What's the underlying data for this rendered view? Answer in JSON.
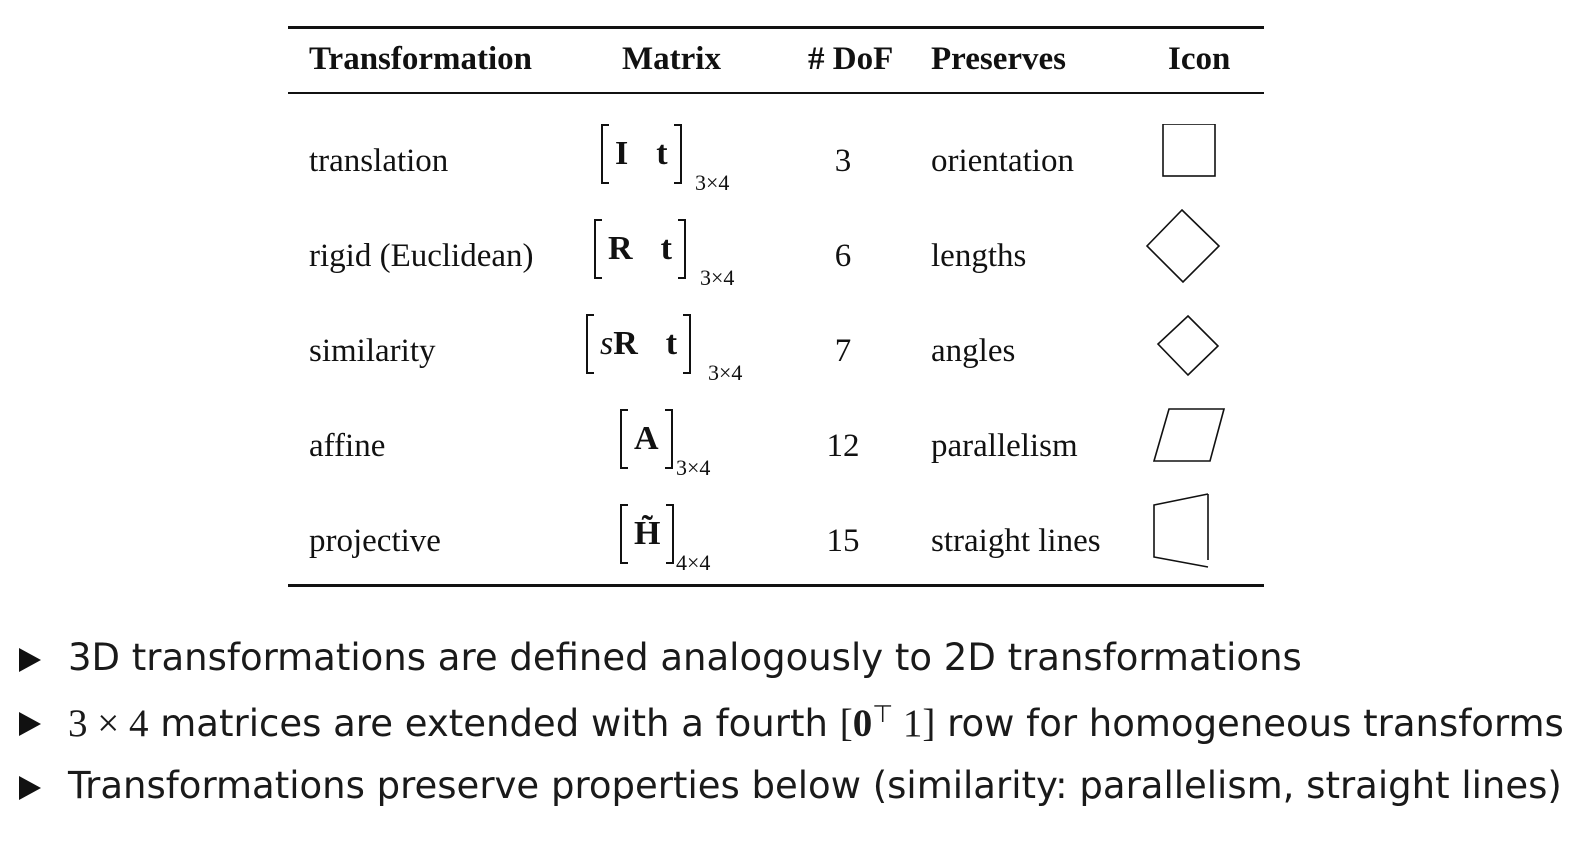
{
  "table": {
    "headers": {
      "transformation": "Transformation",
      "matrix": "Matrix",
      "dof": "# DoF",
      "preserves": "Preserves",
      "icon": "Icon"
    },
    "rows": [
      {
        "transformation": "translation",
        "matrix_a": "I",
        "matrix_b": "t",
        "subscript": "3×4",
        "dof": "3",
        "preserves": "orientation",
        "icon": "square-icon"
      },
      {
        "transformation": "rigid (Euclidean)",
        "matrix_a": "R",
        "matrix_b": "t",
        "subscript": "3×4",
        "dof": "6",
        "preserves": "lengths",
        "icon": "rotated-square-icon"
      },
      {
        "transformation": "similarity",
        "matrix_s": "s",
        "matrix_a": "R",
        "matrix_b": "t",
        "subscript": "3×4",
        "dof": "7",
        "preserves": "angles",
        "icon": "small-rotated-square-icon"
      },
      {
        "transformation": "affine",
        "matrix_a": "A",
        "subscript": "3×4",
        "dof": "12",
        "preserves": "parallelism",
        "icon": "parallelogram-icon"
      },
      {
        "transformation": "projective",
        "matrix_a": "H̃",
        "subscript": "4×4",
        "dof": "15",
        "preserves": "straight lines",
        "icon": "trapezoid-icon"
      }
    ]
  },
  "bullets": {
    "b1": "3D transformations are defined analogously to 2D transformations",
    "b2": {
      "math_a": "3",
      "math_op": "×",
      "math_b": "4",
      "text1": " matrices are extended with a fourth ",
      "bracket_open": "[",
      "zero": "0",
      "transpose": "⊤",
      "one": " 1",
      "bracket_close": "]",
      "text2": " row for homogeneous transforms"
    },
    "b3": "Transformations preserve properties below (similarity: parallelism, straight lines)"
  }
}
